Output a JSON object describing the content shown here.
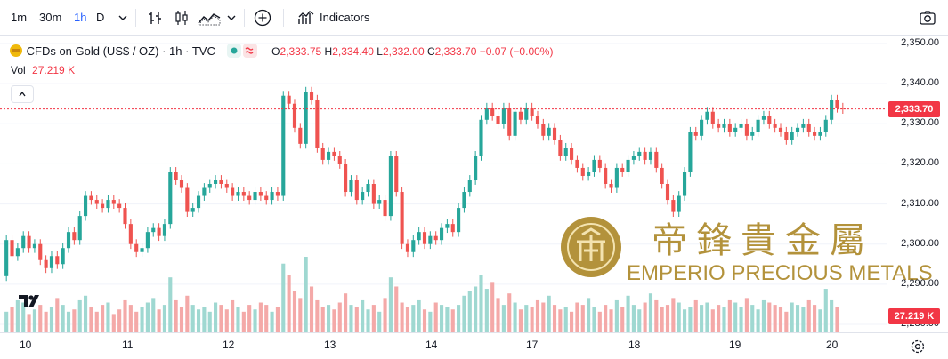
{
  "toolbar": {
    "intervals": [
      "1m",
      "30m",
      "1h",
      "D"
    ],
    "active_interval": "1h",
    "indicators_label": "Indicators",
    "icons": [
      "chevron-down-icon",
      "bar-style-icon",
      "candle-style-icon",
      "area-style-icon",
      "chevron-down-icon",
      "add-compare-icon",
      "indicators-icon",
      "camera-icon"
    ]
  },
  "legend": {
    "symbol": "CFDs on Gold (US$ / OZ)",
    "interval": "1h",
    "source": "TVC",
    "separator": "·",
    "o_label": "O",
    "o_value": "2,333.75",
    "h_label": "H",
    "h_value": "2,334.40",
    "l_label": "L",
    "l_value": "2,332.00",
    "c_label": "C",
    "c_value": "2,333.70",
    "change": "−0.07 (−0.00%)",
    "vol_label": "Vol",
    "vol_value": "27.219 K",
    "collapse_icon": "chevron-up-icon"
  },
  "colors": {
    "up": "#26a69a",
    "down": "#ef5350",
    "vol_up": "#9fd8d1",
    "vol_down": "#f4a9a8",
    "accent": "#2962ff",
    "last_price_line": "#f23645",
    "watermark": "#b3923b"
  },
  "watermark": {
    "chinese": "帝鋒貴金屬",
    "english": "EMPERIO PRECIOUS METALS",
    "logo_icon": "emperio-logo-icon"
  },
  "logo_icon": "tradingview-logo-icon",
  "settings_icon": "gear-icon",
  "chart_data": {
    "type": "candlestick",
    "price_axis": [
      "2,350.00",
      "2,340.00",
      "2,330.00",
      "2,320.00",
      "2,310.00",
      "2,300.00",
      "2,290.00",
      "2,280.00"
    ],
    "ylim": [
      2278,
      2352
    ],
    "last_price_label": "2,333.70",
    "volume_label": "27.219 K",
    "x_ticks": [
      "10",
      "11",
      "12",
      "13",
      "14",
      "17",
      "18",
      "19",
      "20"
    ],
    "candles": [
      [
        2292,
        2301
      ],
      [
        2301,
        2297
      ],
      [
        2297,
        2299
      ],
      [
        2299,
        2302
      ],
      [
        2302,
        2299
      ],
      [
        2299,
        2300
      ],
      [
        2300,
        2296
      ],
      [
        2296,
        2294
      ],
      [
        2294,
        2297
      ],
      [
        2297,
        2295
      ],
      [
        2295,
        2299
      ],
      [
        2299,
        2303
      ],
      [
        2303,
        2301
      ],
      [
        2301,
        2307
      ],
      [
        2307,
        2312
      ],
      [
        2312,
        2311
      ],
      [
        2311,
        2310
      ],
      [
        2310,
        2309
      ],
      [
        2309,
        2311
      ],
      [
        2311,
        2310
      ],
      [
        2310,
        2309
      ],
      [
        2309,
        2305
      ],
      [
        2305,
        2300
      ],
      [
        2300,
        2298
      ],
      [
        2298,
        2299
      ],
      [
        2299,
        2303
      ],
      [
        2303,
        2304
      ],
      [
        2304,
        2302
      ],
      [
        2302,
        2305
      ],
      [
        2305,
        2318
      ],
      [
        2318,
        2316
      ],
      [
        2316,
        2314
      ],
      [
        2314,
        2308
      ],
      [
        2308,
        2309
      ],
      [
        2309,
        2312
      ],
      [
        2312,
        2314
      ],
      [
        2314,
        2315
      ],
      [
        2315,
        2316
      ],
      [
        2316,
        2315
      ],
      [
        2315,
        2314
      ],
      [
        2314,
        2312
      ],
      [
        2312,
        2313
      ],
      [
        2313,
        2312
      ],
      [
        2312,
        2311
      ],
      [
        2311,
        2313
      ],
      [
        2313,
        2312
      ],
      [
        2312,
        2311
      ],
      [
        2311,
        2313
      ],
      [
        2313,
        2312
      ],
      [
        2312,
        2337
      ],
      [
        2337,
        2335
      ],
      [
        2335,
        2329
      ],
      [
        2329,
        2325
      ],
      [
        2325,
        2338
      ],
      [
        2338,
        2336
      ],
      [
        2336,
        2324
      ],
      [
        2324,
        2321
      ],
      [
        2321,
        2323
      ],
      [
        2323,
        2322
      ],
      [
        2322,
        2320
      ],
      [
        2320,
        2313
      ],
      [
        2313,
        2316
      ],
      [
        2316,
        2311
      ],
      [
        2311,
        2313
      ],
      [
        2313,
        2315
      ],
      [
        2315,
        2310
      ],
      [
        2310,
        2311
      ],
      [
        2311,
        2307
      ],
      [
        2307,
        2322
      ],
      [
        2322,
        2313
      ],
      [
        2313,
        2300
      ],
      [
        2300,
        2298
      ],
      [
        2298,
        2301
      ],
      [
        2301,
        2303
      ],
      [
        2303,
        2300
      ],
      [
        2300,
        2302
      ],
      [
        2302,
        2301
      ],
      [
        2301,
        2304
      ],
      [
        2304,
        2305
      ],
      [
        2305,
        2303
      ],
      [
        2303,
        2309
      ],
      [
        2309,
        2313
      ],
      [
        2313,
        2316
      ],
      [
        2316,
        2322
      ],
      [
        2322,
        2331
      ],
      [
        2331,
        2334
      ],
      [
        2334,
        2332
      ],
      [
        2332,
        2330
      ],
      [
        2330,
        2334
      ],
      [
        2334,
        2327
      ],
      [
        2327,
        2333
      ],
      [
        2333,
        2331
      ],
      [
        2331,
        2334
      ],
      [
        2334,
        2332
      ],
      [
        2332,
        2330
      ],
      [
        2330,
        2327
      ],
      [
        2327,
        2329
      ],
      [
        2329,
        2326
      ],
      [
        2326,
        2322
      ],
      [
        2322,
        2324
      ],
      [
        2324,
        2321
      ],
      [
        2321,
        2319
      ],
      [
        2319,
        2317
      ],
      [
        2317,
        2318
      ],
      [
        2318,
        2321
      ],
      [
        2321,
        2319
      ],
      [
        2319,
        2315
      ],
      [
        2315,
        2314
      ],
      [
        2314,
        2319
      ],
      [
        2319,
        2318
      ],
      [
        2318,
        2321
      ],
      [
        2321,
        2322
      ],
      [
        2322,
        2323
      ],
      [
        2323,
        2321
      ],
      [
        2321,
        2323
      ],
      [
        2323,
        2319
      ],
      [
        2319,
        2315
      ],
      [
        2315,
        2311
      ],
      [
        2311,
        2308
      ],
      [
        2308,
        2312
      ],
      [
        2312,
        2318
      ],
      [
        2318,
        2328
      ],
      [
        2328,
        2327
      ],
      [
        2327,
        2331
      ],
      [
        2331,
        2333
      ],
      [
        2333,
        2330
      ],
      [
        2330,
        2329
      ],
      [
        2329,
        2330
      ],
      [
        2330,
        2328
      ],
      [
        2328,
        2329
      ],
      [
        2329,
        2330
      ],
      [
        2330,
        2327
      ],
      [
        2327,
        2328
      ],
      [
        2328,
        2331
      ],
      [
        2331,
        2332
      ],
      [
        2332,
        2330
      ],
      [
        2330,
        2329
      ],
      [
        2329,
        2328
      ],
      [
        2328,
        2326
      ],
      [
        2326,
        2328
      ],
      [
        2328,
        2329
      ],
      [
        2329,
        2330
      ],
      [
        2330,
        2328
      ],
      [
        2328,
        2327
      ],
      [
        2327,
        2328
      ],
      [
        2328,
        2331
      ],
      [
        2331,
        2336
      ],
      [
        2336,
        2334
      ],
      [
        2334,
        2333.7
      ]
    ],
    "volumes": [
      9,
      11,
      14,
      13,
      8,
      10,
      12,
      9,
      11,
      15,
      12,
      9,
      10,
      14,
      16,
      11,
      9,
      12,
      13,
      8,
      10,
      14,
      12,
      9,
      11,
      13,
      15,
      10,
      12,
      24,
      14,
      11,
      16,
      12,
      10,
      11,
      9,
      13,
      12,
      10,
      14,
      11,
      9,
      12,
      10,
      13,
      12,
      9,
      11,
      30,
      25,
      18,
      15,
      33,
      20,
      14,
      11,
      12,
      10,
      13,
      17,
      12,
      11,
      14,
      10,
      12,
      9,
      15,
      24,
      20,
      13,
      11,
      12,
      14,
      10,
      9,
      13,
      12,
      11,
      10,
      12,
      16,
      18,
      20,
      25,
      19,
      22,
      15,
      12,
      17,
      13,
      10,
      12,
      11,
      14,
      13,
      16,
      12,
      10,
      11,
      9,
      13,
      12,
      15,
      11,
      9,
      12,
      10,
      14,
      11,
      16,
      12,
      10,
      13,
      17,
      14,
      11,
      12,
      15,
      13,
      10,
      11,
      14,
      12,
      13,
      10,
      12,
      11,
      14,
      13,
      11,
      15,
      12,
      10,
      14,
      13,
      12,
      11,
      9,
      13,
      12,
      11,
      14,
      12,
      10,
      19,
      14,
      11
    ]
  }
}
